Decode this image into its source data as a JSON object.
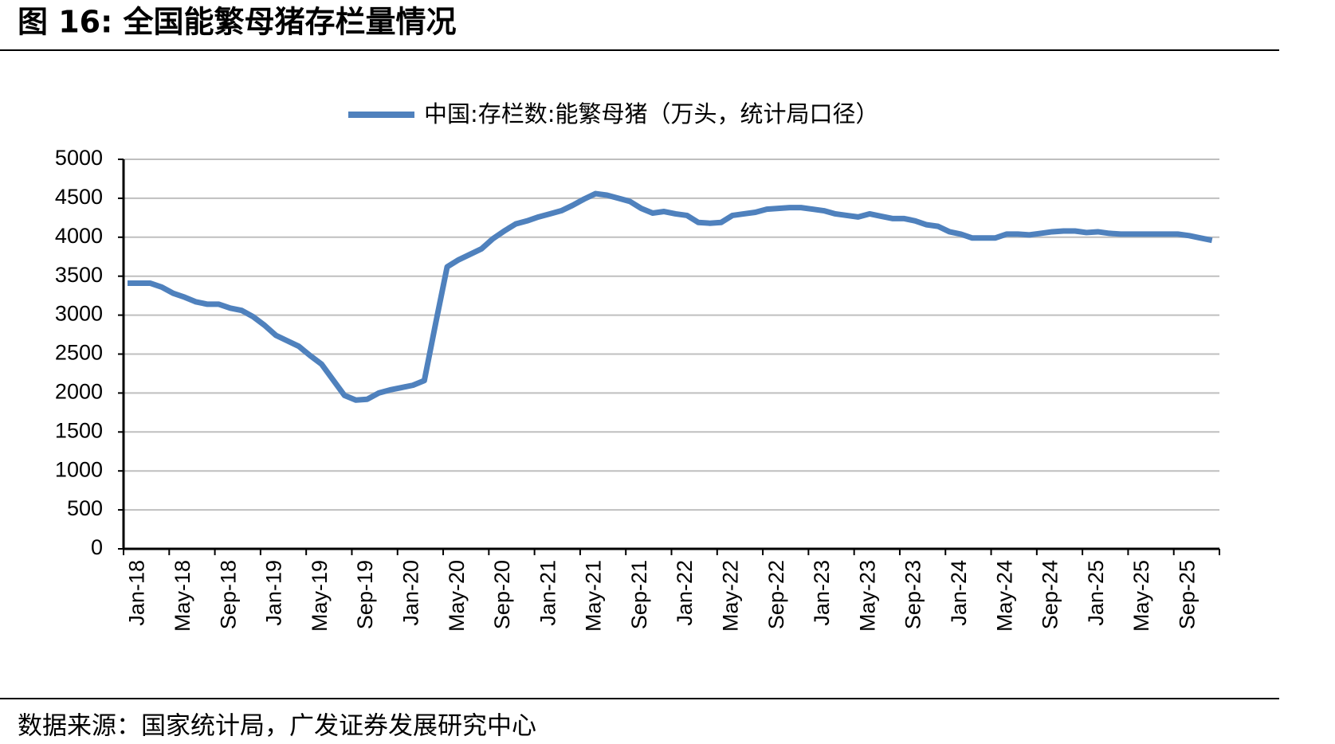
{
  "chart_data": {
    "type": "line",
    "title": "图 16:  全国能繁母猪存栏量情况",
    "source": "数据来源：国家统计局，广发证券发展研究中心",
    "categories": [
      "Jan-18",
      null,
      null,
      null,
      "May-18",
      null,
      null,
      null,
      "Sep-18",
      null,
      null,
      null,
      "Jan-19",
      null,
      null,
      null,
      "May-19",
      null,
      null,
      null,
      "Sep-19",
      null,
      null,
      null,
      "Jan-20",
      null,
      null,
      null,
      "May-20",
      null,
      null,
      null,
      "Sep-20",
      null,
      null,
      null,
      "Jan-21",
      null,
      null,
      null,
      "May-21",
      null,
      null,
      null,
      "Sep-21",
      null,
      null,
      null,
      "Jan-22",
      null,
      null,
      null,
      "May-22",
      null,
      null,
      null,
      "Sep-22",
      null,
      null,
      null,
      "Jan-23",
      null,
      null,
      null,
      "May-23",
      null,
      null,
      null,
      "Sep-23",
      null,
      null,
      null,
      "Jan-24",
      null,
      null,
      null,
      "May-24",
      null,
      null,
      null,
      "Sep-24",
      null,
      null,
      null,
      "Jan-25",
      null,
      null,
      null,
      "May-25",
      null,
      null,
      null,
      "Sep-25",
      null,
      null,
      null
    ],
    "series": [
      {
        "name": "中国:存栏数:能繁母猪（万头，统计局口径）",
        "color": "#4f81bd",
        "values": [
          3410,
          3410,
          3410,
          3360,
          3280,
          3230,
          3170,
          3140,
          3140,
          3090,
          3060,
          2980,
          2870,
          2740,
          2670,
          2600,
          2480,
          2370,
          2170,
          1970,
          1910,
          1920,
          2000,
          2040,
          2070,
          2100,
          2160,
          2900,
          3620,
          3710,
          3780,
          3850,
          3980,
          4080,
          4170,
          4210,
          4260,
          4300,
          4340,
          4410,
          4490,
          4560,
          4540,
          4500,
          4460,
          4370,
          4310,
          4330,
          4300,
          4280,
          4190,
          4180,
          4190,
          4280,
          4300,
          4320,
          4360,
          4370,
          4380,
          4380,
          4360,
          4340,
          4300,
          4280,
          4260,
          4300,
          4270,
          4240,
          4240,
          4210,
          4160,
          4140,
          4070,
          4040,
          3990,
          3990,
          3990,
          4040,
          4040,
          4030,
          4050,
          4070,
          4080,
          4080,
          4060,
          4070,
          4050,
          4040,
          4040,
          4040,
          4040,
          4040,
          4040,
          4020,
          3990,
          3960
        ]
      }
    ],
    "ylim": [
      0,
      5000
    ],
    "yticks": [
      0,
      500,
      1000,
      1500,
      2000,
      2500,
      3000,
      3500,
      4000,
      4500,
      5000
    ],
    "grid": true,
    "legend": "top"
  }
}
